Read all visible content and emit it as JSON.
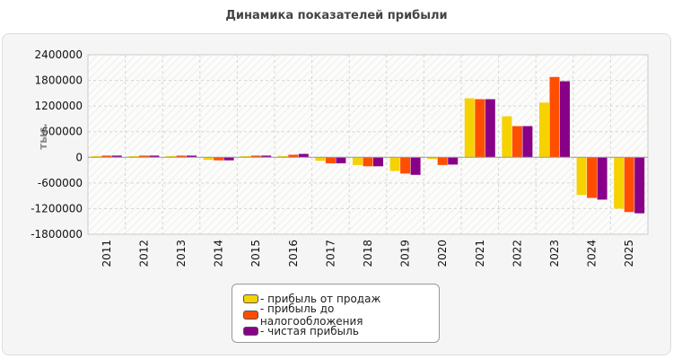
{
  "chart_data": {
    "type": "bar",
    "title": "Динамика показателей прибыли",
    "ylabel": "тыс.",
    "ylim": [
      -1800000,
      2400000
    ],
    "yticks": [
      2400000,
      1800000,
      1200000,
      600000,
      0,
      -600000,
      -1200000,
      -1800000
    ],
    "grid": true,
    "legend_position": "bottom",
    "categories": [
      "2011",
      "2012",
      "2013",
      "2014",
      "2015",
      "2016",
      "2017",
      "2018",
      "2019",
      "2020",
      "2021",
      "2022",
      "2023",
      "2024",
      "2025"
    ],
    "series": [
      {
        "name": "прибыль от продаж",
        "color": "#f5d200",
        "values": [
          30000,
          30000,
          30000,
          -60000,
          30000,
          30000,
          -80000,
          -180000,
          -320000,
          -40000,
          1380000,
          960000,
          1280000,
          -880000,
          -1200000
        ]
      },
      {
        "name": "прибыль до налогообложения",
        "color": "#ff4e00",
        "values": [
          40000,
          40000,
          40000,
          -70000,
          40000,
          60000,
          -140000,
          -210000,
          -380000,
          -180000,
          1360000,
          730000,
          1880000,
          -950000,
          -1280000
        ]
      },
      {
        "name": "чистая прибыль",
        "color": "#880088",
        "values": [
          40000,
          40000,
          40000,
          -70000,
          40000,
          80000,
          -140000,
          -210000,
          -410000,
          -170000,
          1360000,
          730000,
          1780000,
          -990000,
          -1310000
        ]
      }
    ]
  },
  "legend": {
    "items": [
      {
        "label": "- прибыль от продаж",
        "color": "#f5d200"
      },
      {
        "label": "- прибыль до налогообложения",
        "color": "#ff4e00"
      },
      {
        "label": "- чистая прибыль",
        "color": "#880088"
      }
    ]
  }
}
